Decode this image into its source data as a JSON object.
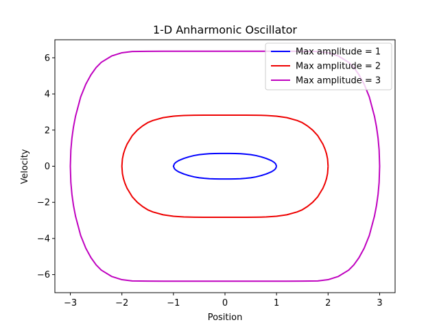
{
  "chart_data": {
    "type": "line",
    "title": "1-D Anharmonic Oscillator",
    "xlabel": "Position",
    "ylabel": "Velocity",
    "xlim": [
      -3.3,
      3.3
    ],
    "ylim": [
      -7.0,
      7.0
    ],
    "x_ticks": [
      -3,
      -2,
      -1,
      0,
      1,
      2,
      3
    ],
    "y_ticks": [
      -6,
      -4,
      -2,
      0,
      2,
      4,
      6
    ],
    "x_tick_labels": [
      "−3",
      "−2",
      "−1",
      "0",
      "1",
      "2",
      "3"
    ],
    "y_tick_labels": [
      "−6",
      "−4",
      "−2",
      "0",
      "2",
      "4",
      "6"
    ],
    "grid": false,
    "legend_position": "top-right",
    "series": [
      {
        "name": "Max amplitude = 1",
        "color": "#0000ff",
        "x": [
          1.0,
          0.98,
          0.95,
          0.9,
          0.8,
          0.7,
          0.6,
          0.5,
          0.4,
          0.3,
          0.2,
          0.1,
          0.0,
          -0.1,
          -0.2,
          -0.3,
          -0.4,
          -0.5,
          -0.6,
          -0.7,
          -0.8,
          -0.9,
          -0.95,
          -0.98,
          -1.0,
          -0.98,
          -0.95,
          -0.9,
          -0.8,
          -0.7,
          -0.6,
          -0.5,
          -0.4,
          -0.3,
          -0.2,
          -0.1,
          0.0,
          0.1,
          0.2,
          0.3,
          0.4,
          0.5,
          0.6,
          0.7,
          0.8,
          0.9,
          0.95,
          0.98,
          1.0
        ],
        "y": [
          0.0,
          0.14,
          0.22,
          0.31,
          0.43,
          0.52,
          0.59,
          0.64,
          0.67,
          0.69,
          0.7,
          0.705,
          0.707,
          0.705,
          0.7,
          0.69,
          0.67,
          0.64,
          0.59,
          0.52,
          0.43,
          0.31,
          0.22,
          0.14,
          0.0,
          -0.14,
          -0.22,
          -0.31,
          -0.43,
          -0.52,
          -0.59,
          -0.64,
          -0.67,
          -0.69,
          -0.7,
          -0.705,
          -0.707,
          -0.705,
          -0.7,
          -0.69,
          -0.67,
          -0.64,
          -0.59,
          -0.52,
          -0.43,
          -0.31,
          -0.22,
          -0.14,
          0.0
        ]
      },
      {
        "name": "Max amplitude = 2",
        "color": "#ee0000",
        "x": [
          2.0,
          1.99,
          1.97,
          1.94,
          1.9,
          1.8,
          1.7,
          1.6,
          1.5,
          1.4,
          1.2,
          1.0,
          0.8,
          0.6,
          0.4,
          0.2,
          0.0,
          -0.2,
          -0.4,
          -0.6,
          -0.8,
          -1.0,
          -1.2,
          -1.4,
          -1.5,
          -1.6,
          -1.7,
          -1.8,
          -1.9,
          -1.94,
          -1.97,
          -1.99,
          -2.0,
          -1.99,
          -1.97,
          -1.94,
          -1.9,
          -1.8,
          -1.7,
          -1.6,
          -1.5,
          -1.4,
          -1.2,
          -1.0,
          -0.8,
          -0.6,
          -0.4,
          -0.2,
          0.0,
          0.2,
          0.4,
          0.6,
          0.8,
          1.0,
          1.2,
          1.4,
          1.5,
          1.6,
          1.7,
          1.8,
          1.9,
          1.94,
          1.97,
          1.99,
          2.0
        ],
        "y": [
          0.0,
          0.4,
          0.68,
          0.95,
          1.22,
          1.69,
          2.0,
          2.23,
          2.41,
          2.53,
          2.69,
          2.77,
          2.81,
          2.823,
          2.825,
          2.828,
          2.828,
          2.828,
          2.825,
          2.823,
          2.81,
          2.77,
          2.69,
          2.53,
          2.41,
          2.23,
          2.0,
          1.69,
          1.22,
          0.95,
          0.68,
          0.4,
          0.0,
          -0.4,
          -0.68,
          -0.95,
          -1.22,
          -1.69,
          -2.0,
          -2.23,
          -2.41,
          -2.53,
          -2.69,
          -2.77,
          -2.81,
          -2.823,
          -2.825,
          -2.828,
          -2.828,
          -2.828,
          -2.825,
          -2.823,
          -2.81,
          -2.77,
          -2.69,
          -2.53,
          -2.41,
          -2.23,
          -2.0,
          -1.69,
          -1.22,
          -0.95,
          -0.68,
          -0.4,
          0.0
        ]
      },
      {
        "name": "Max amplitude = 3",
        "color": "#bf00bf",
        "x": [
          3.0,
          2.99,
          2.97,
          2.94,
          2.9,
          2.8,
          2.7,
          2.6,
          2.5,
          2.4,
          2.2,
          2.0,
          1.8,
          1.5,
          1.2,
          0.9,
          0.6,
          0.3,
          0.0,
          -0.3,
          -0.6,
          -0.9,
          -1.2,
          -1.5,
          -1.8,
          -2.0,
          -2.2,
          -2.4,
          -2.5,
          -2.6,
          -2.7,
          -2.8,
          -2.9,
          -2.94,
          -2.97,
          -2.99,
          -3.0,
          -2.99,
          -2.97,
          -2.94,
          -2.9,
          -2.8,
          -2.7,
          -2.6,
          -2.5,
          -2.4,
          -2.2,
          -2.0,
          -1.8,
          -1.5,
          -1.2,
          -0.9,
          -0.6,
          -0.3,
          0.0,
          0.3,
          0.6,
          0.9,
          1.2,
          1.5,
          1.8,
          2.0,
          2.2,
          2.4,
          2.5,
          2.6,
          2.7,
          2.8,
          2.9,
          2.94,
          2.97,
          2.99,
          3.0
        ],
        "y": [
          0.0,
          0.9,
          1.54,
          2.16,
          2.76,
          3.83,
          4.54,
          5.06,
          5.46,
          5.75,
          6.1,
          6.28,
          6.35,
          6.36,
          6.364,
          6.364,
          6.364,
          6.364,
          6.364,
          6.364,
          6.364,
          6.364,
          6.364,
          6.36,
          6.35,
          6.28,
          6.1,
          5.75,
          5.46,
          5.06,
          4.54,
          3.83,
          2.76,
          2.16,
          1.54,
          0.9,
          0.0,
          -0.9,
          -1.54,
          -2.16,
          -2.76,
          -3.83,
          -4.54,
          -5.06,
          -5.46,
          -5.75,
          -6.1,
          -6.28,
          -6.35,
          -6.36,
          -6.364,
          -6.364,
          -6.364,
          -6.364,
          -6.364,
          -6.364,
          -6.364,
          -6.364,
          -6.364,
          -6.36,
          -6.35,
          -6.28,
          -6.1,
          -5.75,
          -5.46,
          -5.06,
          -4.54,
          -3.83,
          -2.76,
          -2.16,
          -1.54,
          -0.9,
          0.0
        ]
      }
    ]
  }
}
